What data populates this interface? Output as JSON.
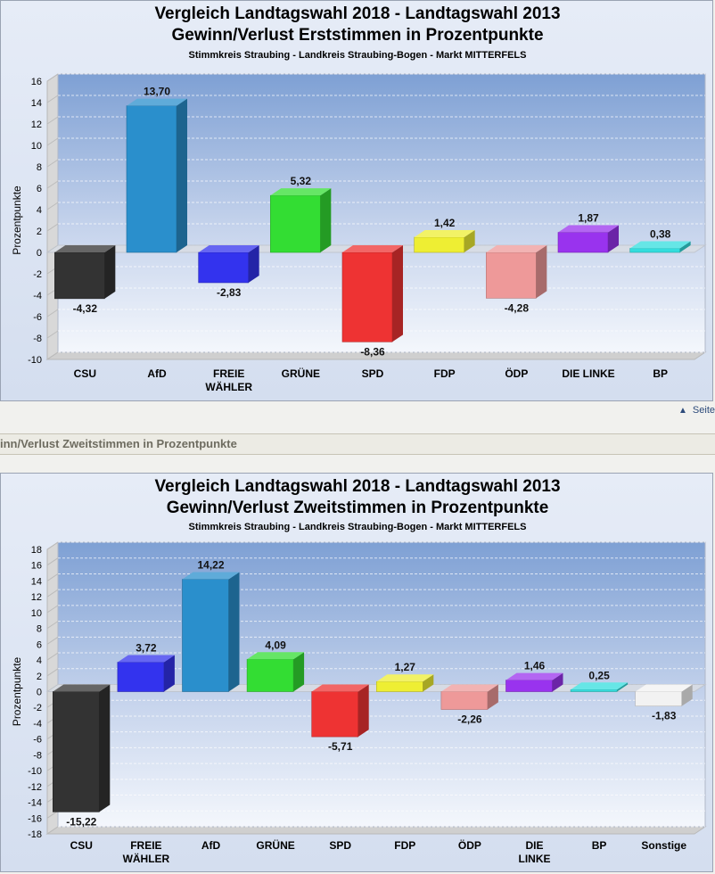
{
  "nav": {
    "link_label": "Seite"
  },
  "section_header": "inn/Verlust Zweitstimmen in Prozentpunkte",
  "chart_data": [
    {
      "type": "bar",
      "title": "Vergleich Landtagswahl 2018 - Landtagswahl 2013",
      "subtitle": "Gewinn/Verlust Erststimmen in Prozentpunkte",
      "caption": "Stimmkreis Straubing - Landkreis Straubing-Bogen - Markt MITTERFELS",
      "ylabel": "Prozentpunkte",
      "ylim": [
        -10,
        16
      ],
      "yticks": [
        "16",
        "14",
        "12",
        "10",
        "8",
        "6",
        "4",
        "2",
        "0",
        "-2",
        "-4",
        "-6",
        "-8",
        "-10"
      ],
      "categories": [
        [
          "CSU"
        ],
        [
          "AfD"
        ],
        [
          "FREIE",
          "WÄHLER"
        ],
        [
          "GRÜNE"
        ],
        [
          "SPD"
        ],
        [
          "FDP"
        ],
        [
          "ÖDP"
        ],
        [
          "DIE LINKE"
        ],
        [
          "BP"
        ]
      ],
      "values": [
        -4.32,
        13.7,
        -2.83,
        5.32,
        -8.36,
        1.42,
        -4.28,
        1.87,
        0.38
      ],
      "value_labels": [
        "-4,32",
        "13,70",
        "-2,83",
        "5,32",
        "-8,36",
        "1,42",
        "-4,28",
        "1,87",
        "0,38"
      ],
      "colors": [
        "#333333",
        "#2a8fcc",
        "#3333ee",
        "#33dd33",
        "#ee3333",
        "#eeee33",
        "#ee9999",
        "#9933ee",
        "#33dddd"
      ],
      "grid": true
    },
    {
      "type": "bar",
      "title": "Vergleich Landtagswahl 2018 - Landtagswahl 2013",
      "subtitle": "Gewinn/Verlust Zweitstimmen in Prozentpunkte",
      "caption": "Stimmkreis Straubing - Landkreis Straubing-Bogen - Markt MITTERFELS",
      "ylabel": "Prozentpunkte",
      "ylim": [
        -18,
        18
      ],
      "yticks": [
        "18",
        "16",
        "14",
        "12",
        "10",
        "8",
        "6",
        "4",
        "2",
        "0",
        "-2",
        "-4",
        "-6",
        "-8",
        "-10",
        "-12",
        "-14",
        "-16",
        "-18"
      ],
      "categories": [
        [
          "CSU"
        ],
        [
          "FREIE",
          "WÄHLER"
        ],
        [
          "AfD"
        ],
        [
          "GRÜNE"
        ],
        [
          "SPD"
        ],
        [
          "FDP"
        ],
        [
          "ÖDP"
        ],
        [
          "DIE",
          "LINKE"
        ],
        [
          "BP"
        ],
        [
          "Sonstige"
        ]
      ],
      "values": [
        -15.22,
        3.72,
        14.22,
        4.09,
        -5.71,
        1.27,
        -2.26,
        1.46,
        0.25,
        -1.83
      ],
      "value_labels": [
        "-15,22",
        "3,72",
        "14,22",
        "4,09",
        "-5,71",
        "1,27",
        "-2,26",
        "1,46",
        "0,25",
        "-1,83"
      ],
      "colors": [
        "#333333",
        "#3333ee",
        "#2a8fcc",
        "#33dd33",
        "#ee3333",
        "#eeee33",
        "#ee9999",
        "#9933ee",
        "#33dddd",
        "#f2f2f2"
      ],
      "grid": true
    }
  ]
}
